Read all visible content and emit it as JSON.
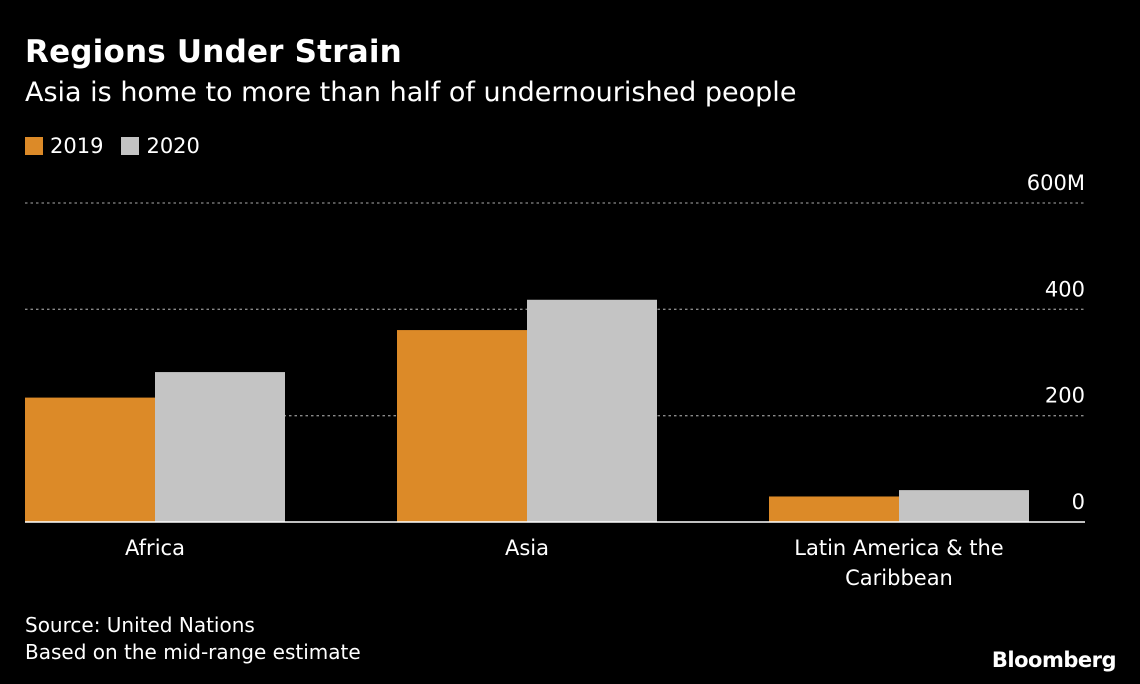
{
  "header": {
    "title": "Regions Under Strain",
    "subtitle": "Asia is home to more than half of undernourished people"
  },
  "legend": [
    {
      "label": "2019",
      "color": "#dc8a28"
    },
    {
      "label": "2020",
      "color": "#c4c4c4"
    }
  ],
  "footer": {
    "source": "Source: United Nations",
    "note": "Based on the mid-range estimate",
    "brand": "Bloomberg"
  },
  "chart_data": {
    "type": "bar",
    "title": "Regions Under Strain",
    "subtitle": "Asia is home to more than half of undernourished people",
    "categories": [
      [
        "Africa"
      ],
      [
        "Asia"
      ],
      [
        "Latin America & the",
        "Caribbean"
      ]
    ],
    "series": [
      {
        "name": "2019",
        "color": "#dc8a28",
        "values": [
          234,
          361,
          48
        ]
      },
      {
        "name": "2020",
        "color": "#c4c4c4",
        "values": [
          282,
          418,
          60
        ]
      }
    ],
    "yticks": [
      {
        "value": 0,
        "label": "0"
      },
      {
        "value": 200,
        "label": "200"
      },
      {
        "value": 400,
        "label": "400"
      },
      {
        "value": 600,
        "label": "600M"
      }
    ],
    "ylim": [
      0,
      600
    ],
    "grid": true,
    "axis_side": "right",
    "legend_position": "top-left"
  }
}
